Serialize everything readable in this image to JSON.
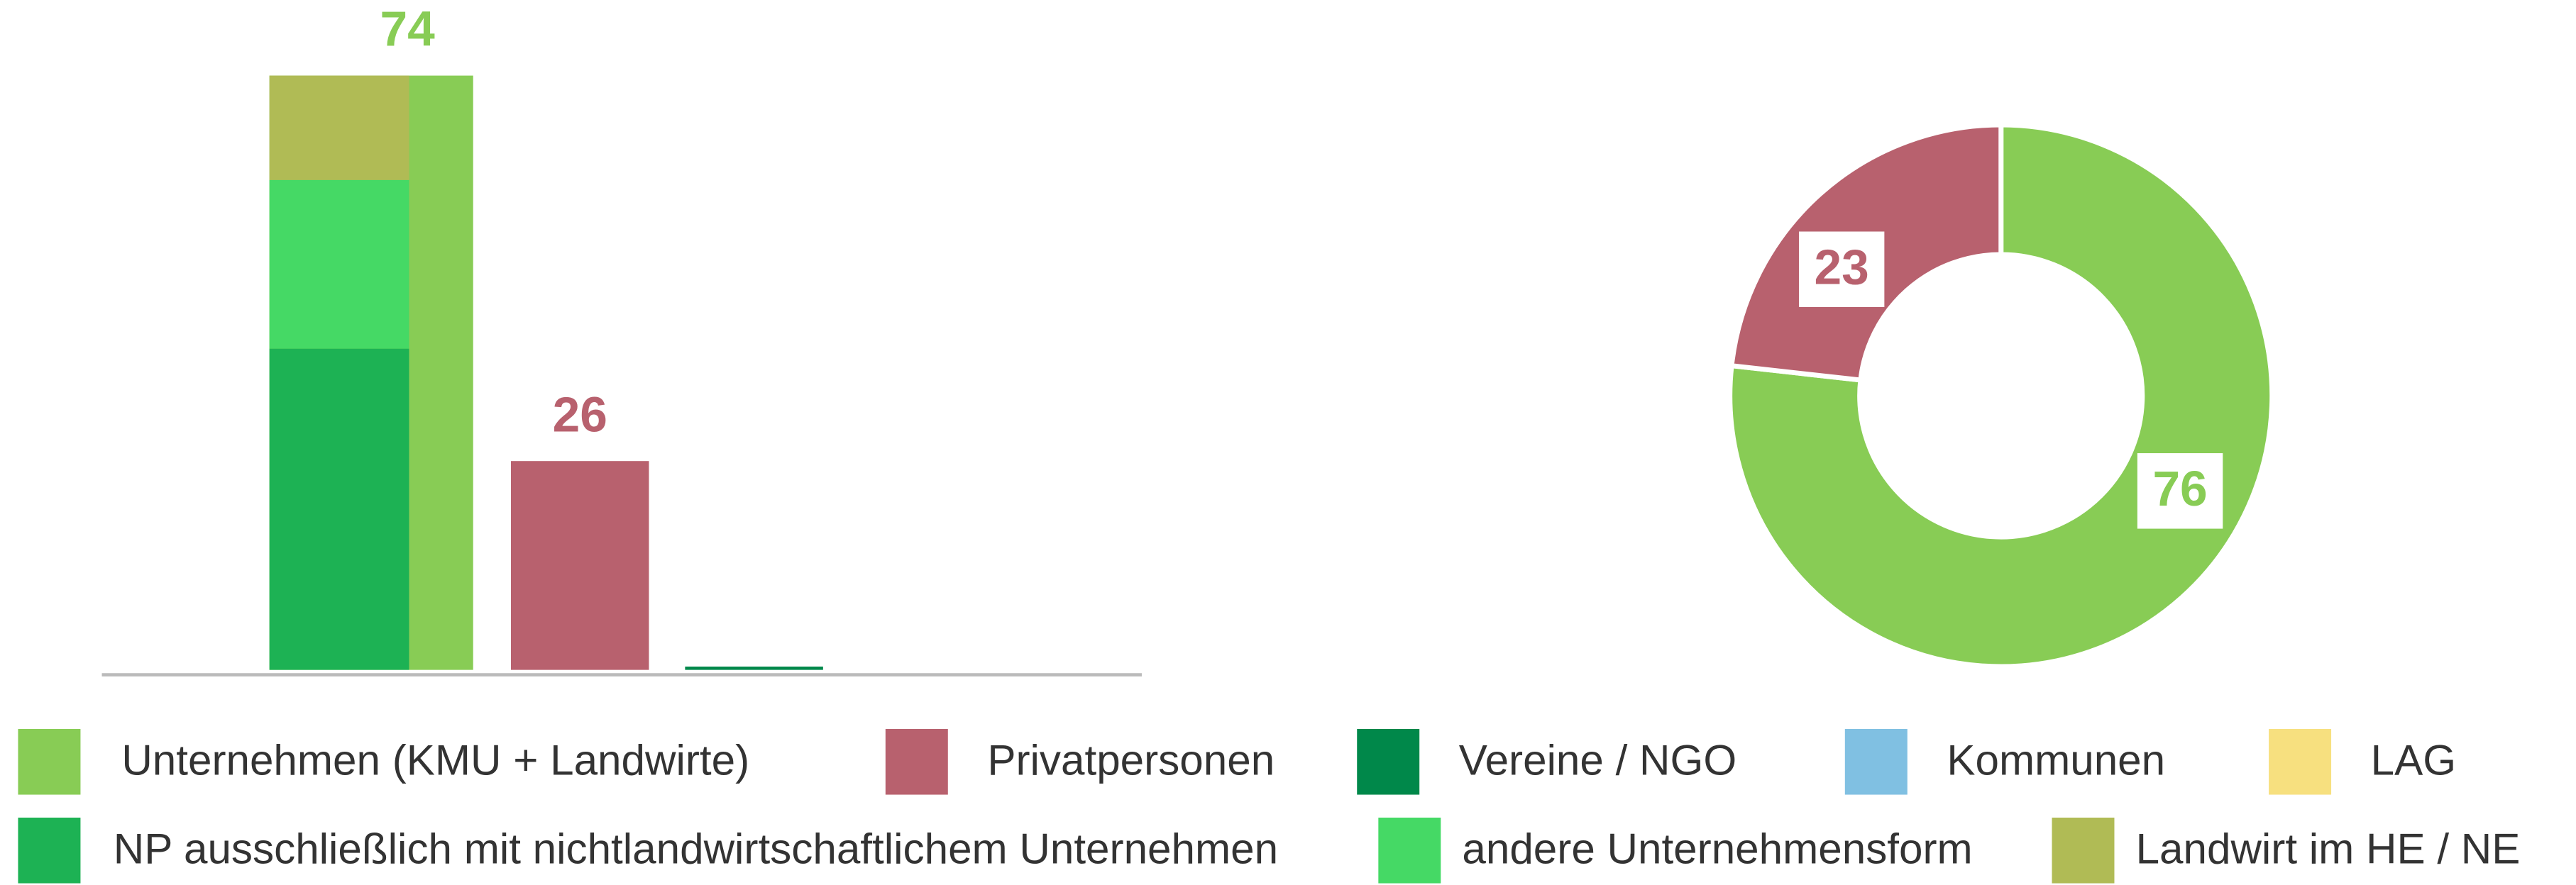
{
  "chart_data": [
    {
      "type": "bar",
      "categories": [
        "Unternehmen (KMU + Landwirte)",
        "Privatpersonen",
        "Vereine / NGO",
        "Kommunen",
        "LAG"
      ],
      "values": [
        74,
        26,
        0.4,
        0,
        0
      ],
      "colors": [
        "#88cc55",
        "#b8616e",
        "#00884a",
        "#80c0e2",
        "#f7e07f"
      ],
      "ylim": [
        0,
        74
      ],
      "stack": [
        {
          "name": "NP ausschließlich mit nichtlandwirtschaftlichem Unternehmen",
          "color": "#1db254",
          "value": 40
        },
        {
          "name": "andere Unternehmensform",
          "color": "#45d965",
          "value": 21
        },
        {
          "name": "Landwirt im HE / NE",
          "color": "#b0bb55",
          "value": 13
        }
      ]
    },
    {
      "type": "pie",
      "values": [
        76,
        23
      ],
      "colors": [
        "#88cc55",
        "#b8616e"
      ]
    }
  ]
}
